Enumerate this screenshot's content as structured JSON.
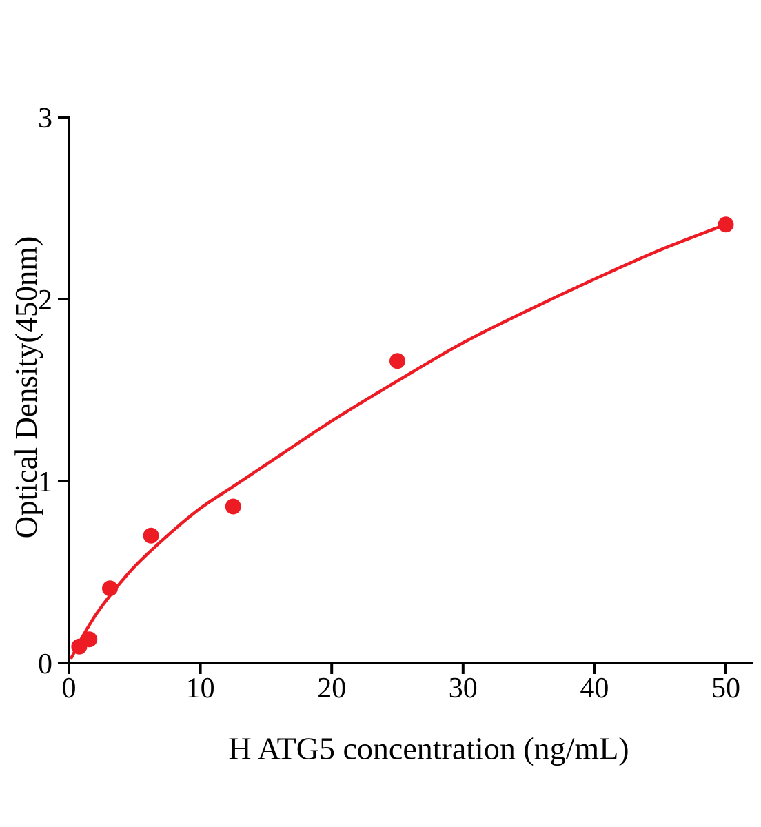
{
  "figure": {
    "background": "#ffffff"
  },
  "chart_data": {
    "type": "scatter",
    "title": "",
    "xlabel": "H ATG5 concentration (ng/mL)",
    "ylabel": "Optical Density(450nm)",
    "xlim": [
      0,
      52
    ],
    "ylim": [
      0,
      3
    ],
    "x_ticks": [
      0,
      10,
      20,
      30,
      40,
      50
    ],
    "y_ticks": [
      0,
      1,
      2,
      3
    ],
    "grid": false,
    "legend": "none",
    "accent_color": "#ED1C24",
    "axis_color": "#000000",
    "series": [
      {
        "name": "standard-points",
        "type": "scatter",
        "color": "#ED1C24",
        "points": [
          {
            "x": 0.78,
            "y": 0.09
          },
          {
            "x": 1.56,
            "y": 0.13
          },
          {
            "x": 3.12,
            "y": 0.41
          },
          {
            "x": 6.25,
            "y": 0.7
          },
          {
            "x": 12.5,
            "y": 0.86
          },
          {
            "x": 25,
            "y": 1.66
          },
          {
            "x": 50,
            "y": 2.41
          }
        ]
      },
      {
        "name": "fitted-curve",
        "type": "line",
        "color": "#ED1C24",
        "points": [
          {
            "x": 0.2,
            "y": 0.03
          },
          {
            "x": 1,
            "y": 0.14
          },
          {
            "x": 2,
            "y": 0.26
          },
          {
            "x": 3.12,
            "y": 0.37
          },
          {
            "x": 5,
            "y": 0.53
          },
          {
            "x": 7.5,
            "y": 0.7
          },
          {
            "x": 10,
            "y": 0.85
          },
          {
            "x": 12.5,
            "y": 0.97
          },
          {
            "x": 15,
            "y": 1.09
          },
          {
            "x": 20,
            "y": 1.33
          },
          {
            "x": 25,
            "y": 1.55
          },
          {
            "x": 30,
            "y": 1.76
          },
          {
            "x": 35,
            "y": 1.94
          },
          {
            "x": 40,
            "y": 2.11
          },
          {
            "x": 45,
            "y": 2.27
          },
          {
            "x": 50,
            "y": 2.41
          }
        ]
      }
    ]
  }
}
